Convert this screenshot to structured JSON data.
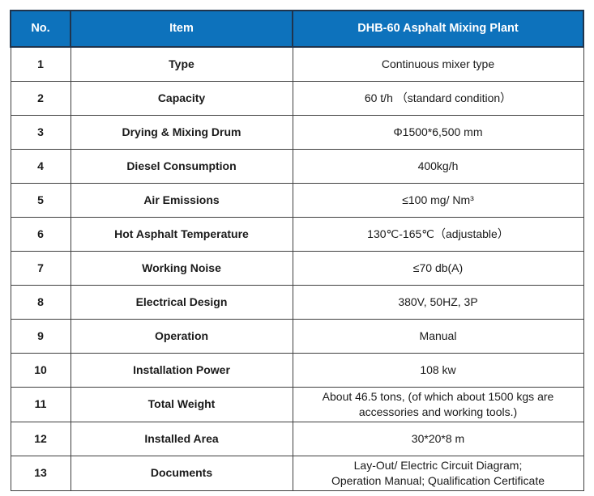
{
  "colors": {
    "header_bg": "#0d72bc",
    "header_text": "#ffffff",
    "border": "#3f3f3f"
  },
  "table": {
    "headers": {
      "no": "No.",
      "item": "Item",
      "product": "DHB-60 Asphalt Mixing Plant"
    },
    "rows": [
      {
        "no": "1",
        "item": "Type",
        "value": "Continuous mixer type"
      },
      {
        "no": "2",
        "item": "Capacity",
        "value": "60 t/h  （standard condition）"
      },
      {
        "no": "3",
        "item": "Drying & Mixing Drum",
        "value": "Φ1500*6,500 mm"
      },
      {
        "no": "4",
        "item": "Diesel Consumption",
        "value": "400kg/h"
      },
      {
        "no": "5",
        "item": "Air Emissions",
        "value": "≤100 mg/ Nm³"
      },
      {
        "no": "6",
        "item": "Hot Asphalt Temperature",
        "value": "130℃-165℃（adjustable）"
      },
      {
        "no": "7",
        "item": "Working Noise",
        "value": "≤70 db(A)"
      },
      {
        "no": "8",
        "item": "Electrical Design",
        "value": "380V, 50HZ, 3P"
      },
      {
        "no": "9",
        "item": "Operation",
        "value": "Manual"
      },
      {
        "no": "10",
        "item": "Installation Power",
        "value": "108 kw"
      },
      {
        "no": "11",
        "item": "Total Weight",
        "value": "About 46.5 tons, (of which about 1500 kgs are\naccessories and working tools.)"
      },
      {
        "no": "12",
        "item": "Installed Area",
        "value": "30*20*8 m"
      },
      {
        "no": "13",
        "item": "Documents",
        "value": "Lay-Out/ Electric Circuit Diagram;\nOperation Manual; Qualification Certificate"
      }
    ]
  }
}
